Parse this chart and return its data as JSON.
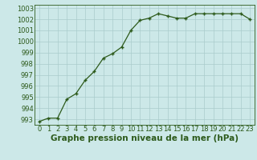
{
  "x": [
    0,
    1,
    2,
    3,
    4,
    5,
    6,
    7,
    8,
    9,
    10,
    11,
    12,
    13,
    14,
    15,
    16,
    17,
    18,
    19,
    20,
    21,
    22,
    23
  ],
  "y": [
    992.8,
    993.1,
    993.1,
    994.8,
    995.3,
    996.5,
    997.3,
    998.5,
    998.9,
    999.5,
    1001.0,
    1001.9,
    1002.1,
    1002.5,
    1002.3,
    1002.1,
    1002.1,
    1002.5,
    1002.5,
    1002.5,
    1002.5,
    1002.5,
    1002.5,
    1002.0
  ],
  "line_color": "#2d5a1b",
  "marker": "+",
  "bg_color": "#cce8e8",
  "grid_color": "#aacccc",
  "xlabel": "Graphe pression niveau de la mer (hPa)",
  "xlabel_fontsize": 7.5,
  "tick_fontsize": 6.0,
  "ylim": [
    992.5,
    1003.3
  ],
  "xlim": [
    -0.5,
    23.5
  ],
  "yticks": [
    993,
    994,
    995,
    996,
    997,
    998,
    999,
    1000,
    1001,
    1002,
    1003
  ],
  "xticks": [
    0,
    1,
    2,
    3,
    4,
    5,
    6,
    7,
    8,
    9,
    10,
    11,
    12,
    13,
    14,
    15,
    16,
    17,
    18,
    19,
    20,
    21,
    22,
    23
  ]
}
